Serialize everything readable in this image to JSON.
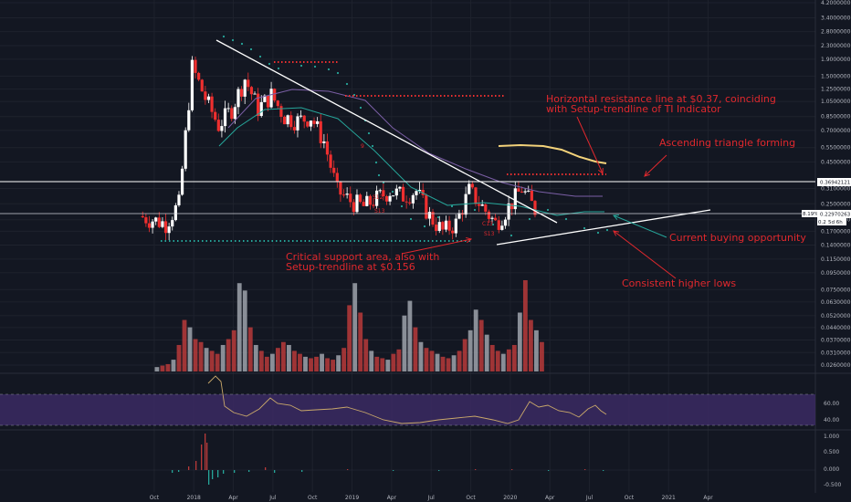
{
  "colors": {
    "background": "#131722",
    "grid": "#1e222d",
    "axis_text": "#b2b5be",
    "up": "#ffffff",
    "down": "#ef2f2f",
    "sma_fast": "#26a69a",
    "sma_slow": "#7b5fa6",
    "ma_yellow": "#f3d27a",
    "annotation": "#e0282d",
    "trend": "#ffffff",
    "vol_up": "#9fa3ab",
    "vol_down": "#b93a3a",
    "rsi_band": "#3b2a63",
    "rsi_line": "#c9a86a"
  },
  "price_axis": {
    "ticks": [
      "4.20000000",
      "3.40000000",
      "2.80000000",
      "2.30000000",
      "1.90000000",
      "1.50000000",
      "1.25000000",
      "1.05000000",
      "0.85000000",
      "0.70000000",
      "0.55000000",
      "0.45000000",
      "0.36942121",
      "0.31000000",
      "0.25000000",
      "0.22970263",
      "0.20000000",
      "0.17000000",
      "0.14000000",
      "0.11500000",
      "0.09500000",
      "0.07500000",
      "0.06300000",
      "0.05200000",
      "0.04400000",
      "0.03700000",
      "0.03100000",
      "0.02600000"
    ],
    "badge_resistance": "0.36942121",
    "badge_price": "0.22970263",
    "badge_percent": "8.19%",
    "badge_partial": "0.21",
    "badge_time": "5d 6h"
  },
  "x_axis": {
    "ticks": [
      "Oct",
      "2018",
      "Apr",
      "Jul",
      "Oct",
      "2019",
      "Apr",
      "Jul",
      "Oct",
      "2020",
      "Apr",
      "Jul",
      "Oct",
      "2021",
      "Apr"
    ]
  },
  "rsi_axis": {
    "ticks": [
      "60.00",
      "40.00"
    ]
  },
  "macd_axis": {
    "ticks": [
      "1.000",
      "0.500",
      "0.000",
      "-0.500"
    ]
  },
  "annotations": {
    "resistance_1": "Horizontal resistance line at $0.37, coinciding",
    "resistance_2": "with Setup-trendline of TI Indicator",
    "triangle": "Ascending triangle forming",
    "buying": "Current buying opportunity",
    "support_1": "Critical support area, also with",
    "support_2": "Setup-trendline at $0.156",
    "higher_lows": "Consistent higher lows"
  },
  "td_labels": [
    "9",
    "S12",
    "S13",
    "C13",
    "S13"
  ],
  "chart_data": {
    "type": "candlestick",
    "title": "",
    "xlabel": "",
    "ylabel": "",
    "price_scale": "log",
    "x_range": [
      "2017-08",
      "2021-05"
    ],
    "ylim": [
      0.022,
      4.2
    ],
    "resistance_level": 0.36942121,
    "support_level": 0.156,
    "last_price": 0.22970263,
    "closes_approx": [
      {
        "date": "2017-09",
        "close": 0.21
      },
      {
        "date": "2017-10",
        "close": 0.2
      },
      {
        "date": "2017-11",
        "close": 0.19
      },
      {
        "date": "2017-12",
        "close": 0.25
      },
      {
        "date": "2018-01",
        "close": 1.7
      },
      {
        "date": "2018-02",
        "close": 1.1
      },
      {
        "date": "2018-03",
        "close": 0.75
      },
      {
        "date": "2018-04",
        "close": 0.95
      },
      {
        "date": "2018-05",
        "close": 1.45
      },
      {
        "date": "2018-06",
        "close": 0.95
      },
      {
        "date": "2018-07",
        "close": 1.15
      },
      {
        "date": "2018-08",
        "close": 0.85
      },
      {
        "date": "2018-09",
        "close": 0.8
      },
      {
        "date": "2018-10",
        "close": 0.85
      },
      {
        "date": "2018-11",
        "close": 0.6
      },
      {
        "date": "2018-12",
        "close": 0.3
      },
      {
        "date": "2019-01",
        "close": 0.26
      },
      {
        "date": "2019-02",
        "close": 0.24
      },
      {
        "date": "2019-03",
        "close": 0.27
      },
      {
        "date": "2019-04",
        "close": 0.3
      },
      {
        "date": "2019-05",
        "close": 0.28
      },
      {
        "date": "2019-06",
        "close": 0.3
      },
      {
        "date": "2019-07",
        "close": 0.21
      },
      {
        "date": "2019-08",
        "close": 0.17
      },
      {
        "date": "2019-09",
        "close": 0.19
      },
      {
        "date": "2019-10",
        "close": 0.3
      },
      {
        "date": "2019-11",
        "close": 0.24
      },
      {
        "date": "2019-12",
        "close": 0.19
      },
      {
        "date": "2020-01",
        "close": 0.24
      },
      {
        "date": "2020-02",
        "close": 0.31
      },
      {
        "date": "2020-03",
        "close": 0.23
      }
    ],
    "volume_approx": [
      3,
      4,
      5,
      8,
      18,
      35,
      30,
      22,
      20,
      16,
      14,
      12,
      18,
      22,
      28,
      60,
      55,
      30,
      18,
      14,
      10,
      12,
      16,
      20,
      18,
      14,
      12,
      10,
      9,
      10,
      12,
      9,
      8,
      11,
      16,
      45,
      60,
      40,
      22,
      14,
      10,
      9,
      8,
      12,
      15,
      38,
      48,
      30,
      20,
      16,
      14,
      12,
      10,
      9,
      11,
      14,
      22,
      28,
      42,
      35,
      25,
      18,
      14,
      12,
      15,
      18,
      40,
      62,
      35,
      28,
      20
    ]
  }
}
